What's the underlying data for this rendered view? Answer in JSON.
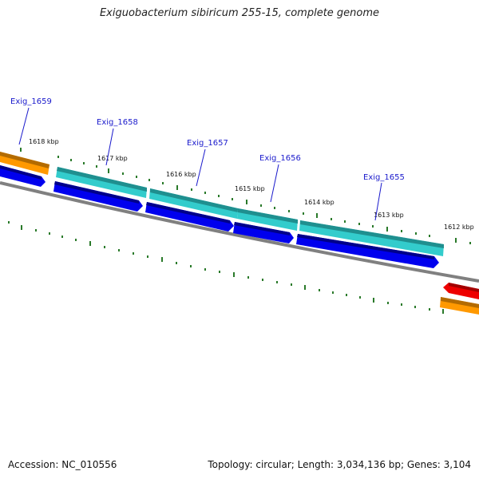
{
  "title": "Exiguobacterium sibiricum 255-15, complete genome",
  "footer": {
    "accession": "Accession: NC_010556",
    "summary": "Topology: circular; Length: 3,034,136 bp; Genes: 3,104"
  },
  "colors": {
    "backbone": "#808080",
    "tick": "#2a7a2a",
    "cds_forward": "#0000ee",
    "gene_teal": "#33cccc",
    "gene_orange": "#ff9900",
    "gene_red": "#ee0000",
    "label": "#1a1acc"
  },
  "ticks": [
    {
      "label": "1618 kbp"
    },
    {
      "label": "1617 kbp"
    },
    {
      "label": "1616 kbp"
    },
    {
      "label": "1615 kbp"
    },
    {
      "label": "1614 kbp"
    },
    {
      "label": "1613 kbp"
    },
    {
      "label": "1612 kbp"
    }
  ],
  "genes": [
    {
      "label": "Exig_1659"
    },
    {
      "label": "Exig_1658"
    },
    {
      "label": "Exig_1657"
    },
    {
      "label": "Exig_1656"
    },
    {
      "label": "Exig_1655"
    }
  ]
}
